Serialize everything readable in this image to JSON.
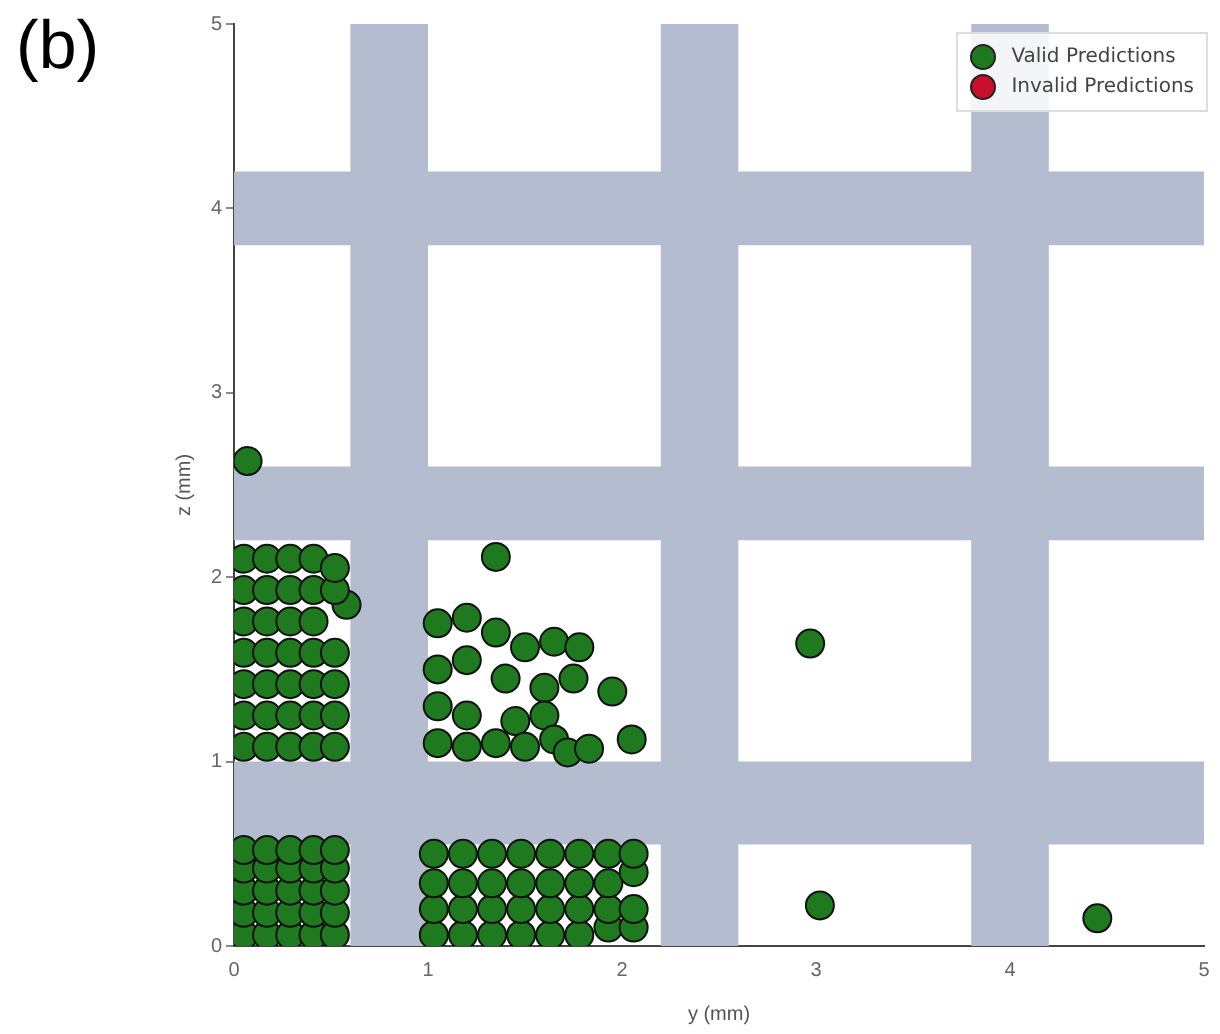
{
  "chart_data": {
    "type": "scatter",
    "title": "(b)",
    "xlabel": "y (mm)",
    "ylabel": "z (mm)",
    "xlim": [
      0,
      5
    ],
    "ylim": [
      0,
      5
    ],
    "xticks": [
      0,
      1,
      2,
      3,
      4,
      5
    ],
    "yticks": [
      0,
      1,
      2,
      3,
      4,
      5
    ],
    "grid": false,
    "legend": "top right",
    "marker": "circle",
    "bands": [
      {
        "axis": "x",
        "from": 0.6,
        "to": 1.0,
        "color": "#b4bdcf"
      },
      {
        "axis": "x",
        "from": 2.2,
        "to": 2.6,
        "color": "#b4bdcf"
      },
      {
        "axis": "x",
        "from": 3.8,
        "to": 4.2,
        "color": "#b4bdcf"
      },
      {
        "axis": "y",
        "from": 0.55,
        "to": 1.0,
        "color": "#b4bdcf"
      },
      {
        "axis": "y",
        "from": 2.2,
        "to": 2.6,
        "color": "#b4bdcf"
      },
      {
        "axis": "y",
        "from": 3.8,
        "to": 4.2,
        "color": "#b4bdcf"
      }
    ],
    "series": [
      {
        "name": "Valid Predictions",
        "color": "#1f7a1f",
        "x": [
          0.05,
          0.17,
          0.29,
          0.41,
          0.52,
          0.05,
          0.17,
          0.29,
          0.41,
          0.52,
          0.05,
          0.17,
          0.29,
          0.41,
          0.52,
          0.05,
          0.17,
          0.29,
          0.41,
          0.52,
          0.05,
          0.17,
          0.29,
          0.41,
          0.52,
          0.05,
          0.17,
          0.29,
          0.41,
          0.52,
          0.05,
          0.17,
          0.29,
          0.41,
          0.52,
          0.05,
          0.17,
          0.29,
          0.41,
          0.52,
          0.05,
          0.17,
          0.29,
          0.41,
          0.52,
          0.05,
          0.17,
          0.29,
          0.41,
          0.58,
          0.05,
          0.17,
          0.29,
          0.41,
          0.52,
          0.05,
          0.17,
          0.29,
          0.41,
          0.52,
          1.03,
          1.18,
          1.33,
          1.48,
          1.63,
          1.78,
          1.93,
          2.06,
          1.03,
          1.18,
          1.33,
          1.48,
          1.63,
          1.78,
          1.93,
          2.06,
          1.03,
          1.18,
          1.33,
          1.48,
          1.63,
          1.78,
          1.93,
          2.06,
          1.03,
          1.18,
          1.33,
          1.48,
          1.63,
          1.78,
          1.93,
          2.06,
          1.05,
          1.2,
          1.35,
          1.5,
          1.65,
          1.78,
          1.05,
          1.2,
          1.4,
          1.6,
          1.75,
          1.05,
          1.2,
          1.45,
          1.6,
          1.05,
          1.2,
          1.35,
          1.5,
          1.65,
          1.72,
          0.07,
          1.35,
          1.95,
          2.05,
          1.83,
          2.97,
          3.02,
          4.45
        ],
        "values": [
          0.06,
          0.06,
          0.06,
          0.06,
          0.06,
          0.18,
          0.18,
          0.18,
          0.18,
          0.18,
          0.3,
          0.3,
          0.3,
          0.3,
          0.3,
          0.42,
          0.42,
          0.42,
          0.42,
          0.42,
          0.52,
          0.52,
          0.52,
          0.52,
          0.52,
          1.08,
          1.08,
          1.08,
          1.08,
          1.08,
          1.25,
          1.25,
          1.25,
          1.25,
          1.25,
          1.42,
          1.42,
          1.42,
          1.42,
          1.42,
          1.59,
          1.59,
          1.59,
          1.59,
          1.59,
          1.76,
          1.76,
          1.76,
          1.76,
          1.85,
          1.93,
          1.93,
          1.93,
          1.93,
          1.93,
          2.1,
          2.1,
          2.1,
          2.1,
          2.05,
          0.06,
          0.06,
          0.06,
          0.06,
          0.06,
          0.06,
          0.1,
          0.1,
          0.2,
          0.2,
          0.2,
          0.2,
          0.2,
          0.2,
          0.2,
          0.2,
          0.34,
          0.34,
          0.34,
          0.34,
          0.34,
          0.34,
          0.34,
          0.4,
          0.5,
          0.5,
          0.5,
          0.5,
          0.5,
          0.5,
          0.5,
          0.5,
          1.75,
          1.78,
          1.7,
          1.62,
          1.65,
          1.62,
          1.5,
          1.55,
          1.45,
          1.4,
          1.45,
          1.3,
          1.25,
          1.22,
          1.25,
          1.1,
          1.08,
          1.1,
          1.08,
          1.12,
          1.05,
          2.63,
          2.11,
          1.38,
          1.12,
          1.07,
          1.64,
          0.22,
          0.15
        ]
      },
      {
        "name": "Invalid Predictions",
        "color": "#c8102e"
      }
    ]
  }
}
